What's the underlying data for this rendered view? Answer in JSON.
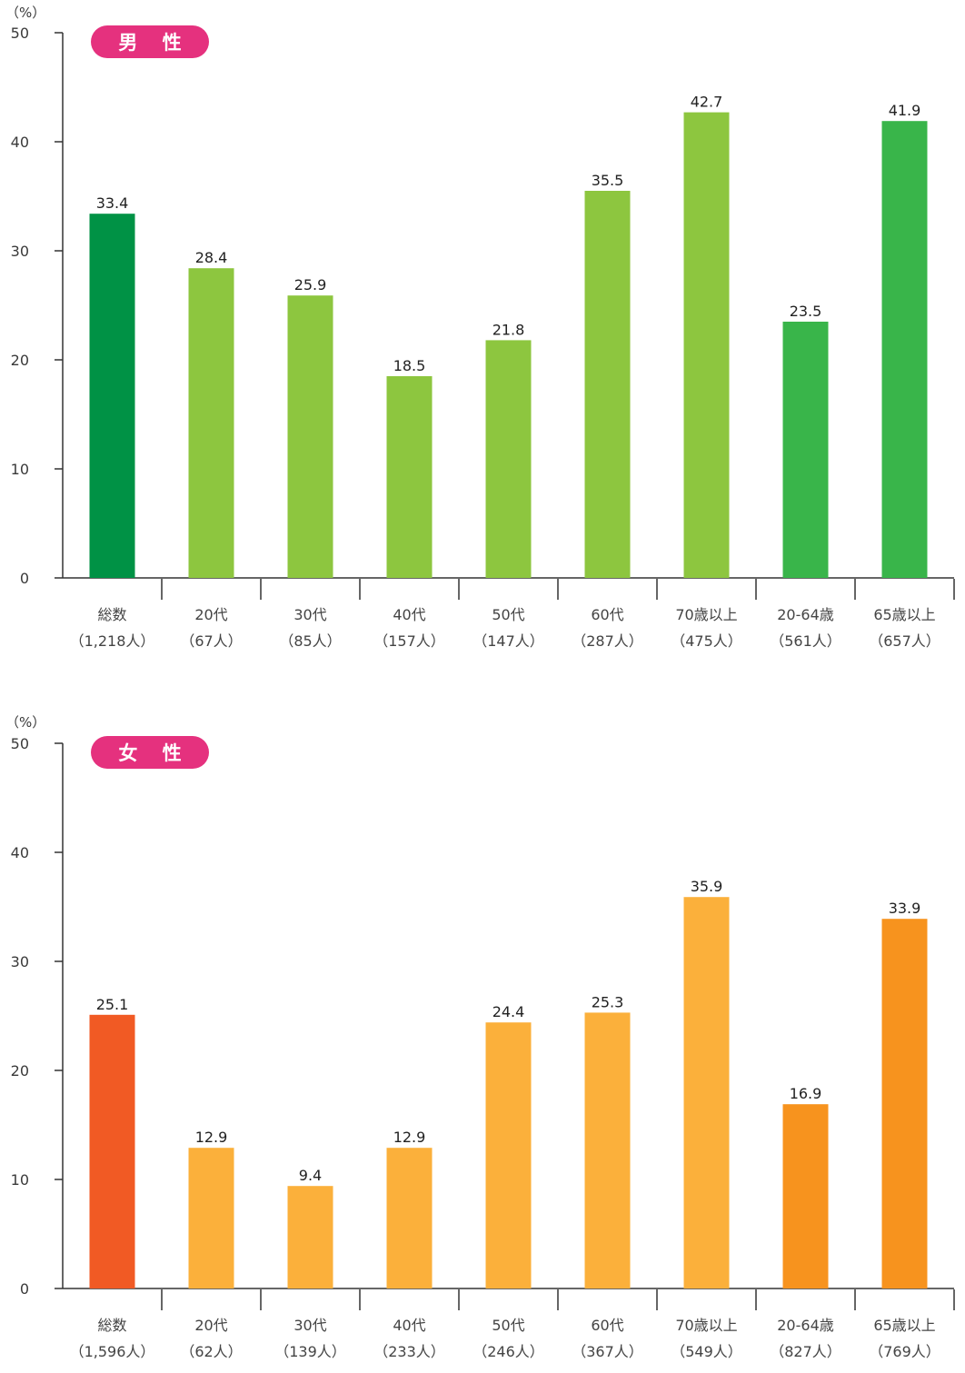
{
  "colors": {
    "axis": "#333333",
    "badge": "#e5317e",
    "badge_text": "#ffffff"
  },
  "chart_data": [
    {
      "type": "bar",
      "title": "男 性",
      "ylabel": "（%）",
      "ylim": [
        0,
        50
      ],
      "yticks": [
        0,
        10,
        20,
        30,
        40,
        50
      ],
      "categories": [
        [
          "総数",
          "（1,218人）"
        ],
        [
          "20代",
          "（67人）"
        ],
        [
          "30代",
          "（85人）"
        ],
        [
          "40代",
          "（157人）"
        ],
        [
          "50代",
          "（147人）"
        ],
        [
          "60代",
          "（287人）"
        ],
        [
          "70歳以上",
          "（475人）"
        ],
        [
          "20-64歳",
          "（561人）"
        ],
        [
          "65歳以上",
          "（657人）"
        ]
      ],
      "values": [
        33.4,
        28.4,
        25.9,
        18.5,
        21.8,
        35.5,
        42.7,
        23.5,
        41.9
      ],
      "value_labels": [
        "33.4",
        "28.4",
        "25.9",
        "18.5",
        "21.8",
        "35.5",
        "42.7",
        "23.5",
        "41.9"
      ],
      "bar_colors": [
        "#009245",
        "#8dc63f",
        "#8dc63f",
        "#8dc63f",
        "#8dc63f",
        "#8dc63f",
        "#8dc63f",
        "#39b54a",
        "#39b54a"
      ],
      "grid": false
    },
    {
      "type": "bar",
      "title": "女 性",
      "ylabel": "（%）",
      "ylim": [
        0,
        50
      ],
      "yticks": [
        0,
        10,
        20,
        30,
        40,
        50
      ],
      "categories": [
        [
          "総数",
          "（1,596人）"
        ],
        [
          "20代",
          "（62人）"
        ],
        [
          "30代",
          "（139人）"
        ],
        [
          "40代",
          "（233人）"
        ],
        [
          "50代",
          "（246人）"
        ],
        [
          "60代",
          "（367人）"
        ],
        [
          "70歳以上",
          "（549人）"
        ],
        [
          "20-64歳",
          "（827人）"
        ],
        [
          "65歳以上",
          "（769人）"
        ]
      ],
      "values": [
        25.1,
        12.9,
        9.4,
        12.9,
        24.4,
        25.3,
        35.9,
        16.9,
        33.9
      ],
      "value_labels": [
        "25.1",
        "12.9",
        "9.4",
        "12.9",
        "24.4",
        "25.3",
        "35.9",
        "16.9",
        "33.9"
      ],
      "bar_colors": [
        "#f15a24",
        "#fbb03b",
        "#fbb03b",
        "#fbb03b",
        "#fbb03b",
        "#fbb03b",
        "#fbb03b",
        "#f7931e",
        "#f7931e"
      ],
      "grid": false
    }
  ]
}
